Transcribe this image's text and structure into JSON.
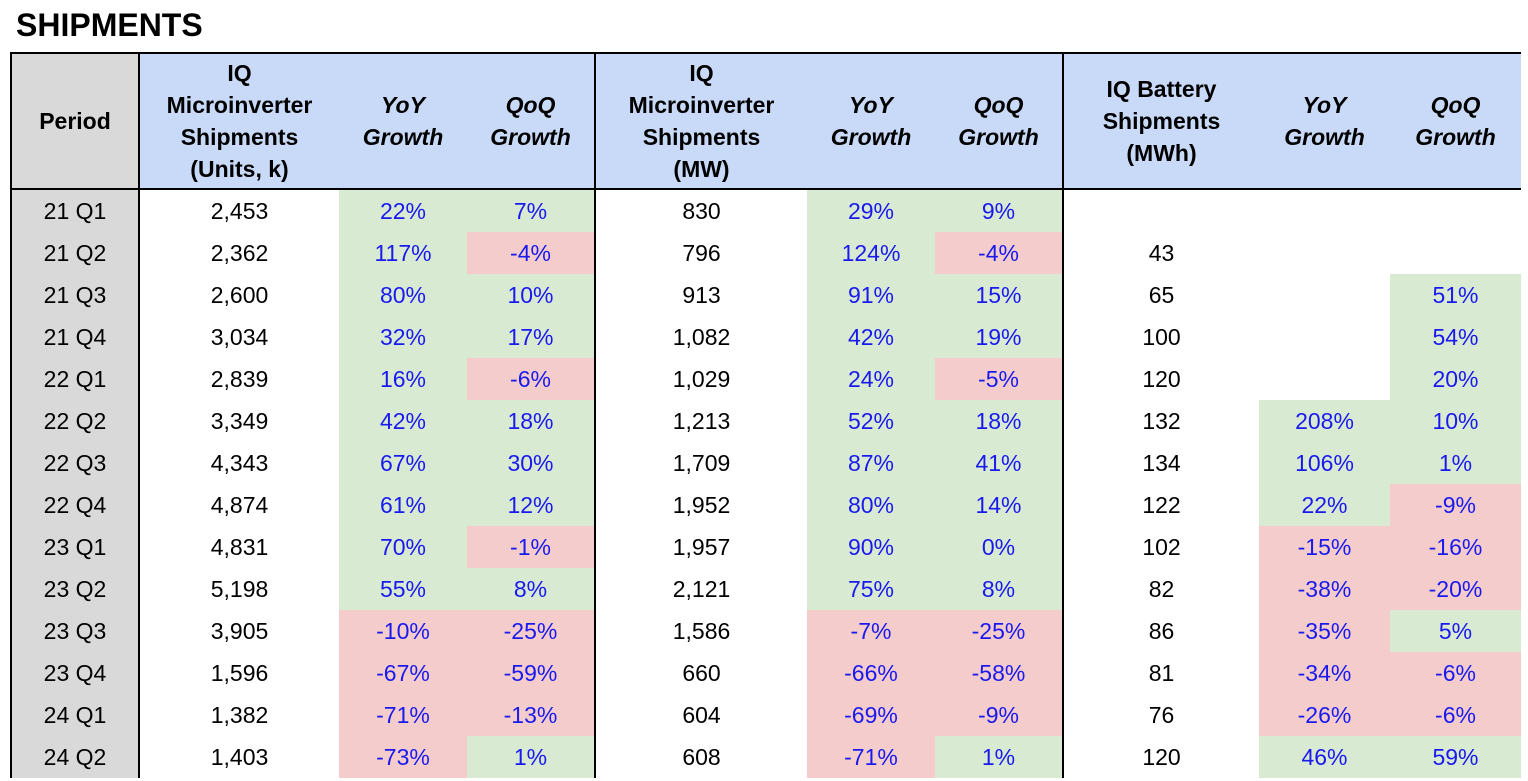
{
  "title": "SHIPMENTS",
  "headers": {
    "period": "Period",
    "units": [
      "IQ",
      "Microinverter",
      "Shipments",
      "(Units, k)"
    ],
    "mw": [
      "IQ",
      "Microinverter",
      "Shipments",
      "(MW)"
    ],
    "battery": [
      "IQ Battery",
      "Shipments",
      "(MWh)"
    ],
    "yoy": [
      "YoY",
      "Growth"
    ],
    "qoq": [
      "QoQ",
      "Growth"
    ]
  },
  "colors": {
    "green": "#d9ead3",
    "red": "#f4cccc",
    "header_blue": "#c9daf8",
    "period_gray": "#d9d9d9",
    "pct_text": "#1a1aee"
  },
  "rows": [
    {
      "period": "21 Q1",
      "units": "2,453",
      "units_yoy": "22%",
      "units_qoq": "7%",
      "mw": "830",
      "mw_yoy": "29%",
      "mw_qoq": "9%",
      "bat": "",
      "bat_yoy": "",
      "bat_qoq": ""
    },
    {
      "period": "21 Q2",
      "units": "2,362",
      "units_yoy": "117%",
      "units_qoq": "-4%",
      "mw": "796",
      "mw_yoy": "124%",
      "mw_qoq": "-4%",
      "bat": "43",
      "bat_yoy": "",
      "bat_qoq": ""
    },
    {
      "period": "21 Q3",
      "units": "2,600",
      "units_yoy": "80%",
      "units_qoq": "10%",
      "mw": "913",
      "mw_yoy": "91%",
      "mw_qoq": "15%",
      "bat": "65",
      "bat_yoy": "",
      "bat_qoq": "51%"
    },
    {
      "period": "21 Q4",
      "units": "3,034",
      "units_yoy": "32%",
      "units_qoq": "17%",
      "mw": "1,082",
      "mw_yoy": "42%",
      "mw_qoq": "19%",
      "bat": "100",
      "bat_yoy": "",
      "bat_qoq": "54%"
    },
    {
      "period": "22 Q1",
      "units": "2,839",
      "units_yoy": "16%",
      "units_qoq": "-6%",
      "mw": "1,029",
      "mw_yoy": "24%",
      "mw_qoq": "-5%",
      "bat": "120",
      "bat_yoy": "",
      "bat_qoq": "20%"
    },
    {
      "period": "22 Q2",
      "units": "3,349",
      "units_yoy": "42%",
      "units_qoq": "18%",
      "mw": "1,213",
      "mw_yoy": "52%",
      "mw_qoq": "18%",
      "bat": "132",
      "bat_yoy": "208%",
      "bat_qoq": "10%"
    },
    {
      "period": "22 Q3",
      "units": "4,343",
      "units_yoy": "67%",
      "units_qoq": "30%",
      "mw": "1,709",
      "mw_yoy": "87%",
      "mw_qoq": "41%",
      "bat": "134",
      "bat_yoy": "106%",
      "bat_qoq": "1%"
    },
    {
      "period": "22 Q4",
      "units": "4,874",
      "units_yoy": "61%",
      "units_qoq": "12%",
      "mw": "1,952",
      "mw_yoy": "80%",
      "mw_qoq": "14%",
      "bat": "122",
      "bat_yoy": "22%",
      "bat_qoq": "-9%"
    },
    {
      "period": "23 Q1",
      "units": "4,831",
      "units_yoy": "70%",
      "units_qoq": "-1%",
      "mw": "1,957",
      "mw_yoy": "90%",
      "mw_qoq": "0%",
      "bat": "102",
      "bat_yoy": "-15%",
      "bat_qoq": "-16%"
    },
    {
      "period": "23 Q2",
      "units": "5,198",
      "units_yoy": "55%",
      "units_qoq": "8%",
      "mw": "2,121",
      "mw_yoy": "75%",
      "mw_qoq": "8%",
      "bat": "82",
      "bat_yoy": "-38%",
      "bat_qoq": "-20%"
    },
    {
      "period": "23 Q3",
      "units": "3,905",
      "units_yoy": "-10%",
      "units_qoq": "-25%",
      "mw": "1,586",
      "mw_yoy": "-7%",
      "mw_qoq": "-25%",
      "bat": "86",
      "bat_yoy": "-35%",
      "bat_qoq": "5%"
    },
    {
      "period": "23 Q4",
      "units": "1,596",
      "units_yoy": "-67%",
      "units_qoq": "-59%",
      "mw": "660",
      "mw_yoy": "-66%",
      "mw_qoq": "-58%",
      "bat": "81",
      "bat_yoy": "-34%",
      "bat_qoq": "-6%"
    },
    {
      "period": "24 Q1",
      "units": "1,382",
      "units_yoy": "-71%",
      "units_qoq": "-13%",
      "mw": "604",
      "mw_yoy": "-69%",
      "mw_qoq": "-9%",
      "bat": "76",
      "bat_yoy": "-26%",
      "bat_qoq": "-6%"
    },
    {
      "period": "24 Q2",
      "units": "1,403",
      "units_yoy": "-73%",
      "units_qoq": "1%",
      "mw": "608",
      "mw_yoy": "-71%",
      "mw_qoq": "1%",
      "bat": "120",
      "bat_yoy": "46%",
      "bat_qoq": "59%"
    }
  ]
}
